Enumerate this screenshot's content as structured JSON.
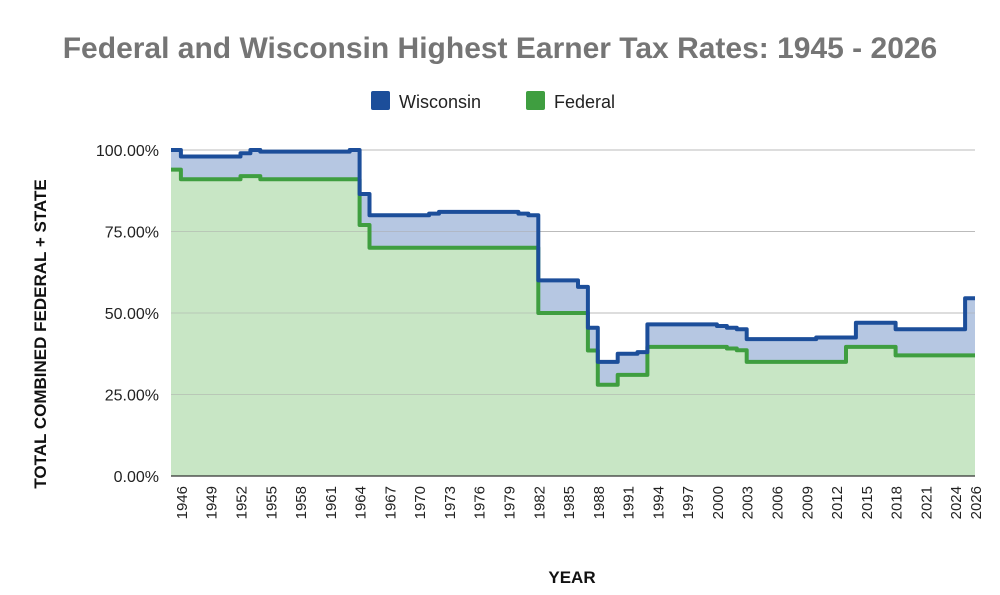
{
  "chart_data": {
    "type": "area",
    "title": "Federal and Wisconsin Highest Earner Tax Rates: 1945 - 2026",
    "xlabel": "YEAR",
    "ylabel": "TOTAL COMBINED FEDERAL + STATE",
    "ylim": [
      0,
      100
    ],
    "xlim": [
      1945,
      2026
    ],
    "grid": true,
    "legend_position": "top",
    "yticks": [
      "0.00%",
      "25.00%",
      "50.00%",
      "75.00%",
      "100.00%"
    ],
    "xticks": [
      "1946",
      "1949",
      "1952",
      "1955",
      "1958",
      "1961",
      "1964",
      "1967",
      "1970",
      "1973",
      "1976",
      "1979",
      "1982",
      "1985",
      "1988",
      "1991",
      "1994",
      "1997",
      "2000",
      "2003",
      "2006",
      "2009",
      "2012",
      "2015",
      "2018",
      "2021",
      "2024",
      "2026"
    ],
    "colors": {
      "wisconsin_line": "#1c4e9a",
      "wisconsin_fill": "#b6c7e2",
      "federal_line": "#3f9e40",
      "federal_fill": "#c8e6c5",
      "grid": "#cccccc",
      "title": "#757575"
    },
    "series": [
      {
        "name": "Wisconsin",
        "x": [
          1945,
          1946,
          1951,
          1952,
          1953,
          1954,
          1963,
          1964,
          1965,
          1970,
          1971,
          1972,
          1980,
          1981,
          1982,
          1986,
          1987,
          1988,
          1990,
          1992,
          1993,
          1999,
          2000,
          2001,
          2002,
          2003,
          2009,
          2010,
          2013,
          2014,
          2017,
          2018,
          2024,
          2025,
          2026
        ],
        "values": [
          100,
          98,
          98,
          99,
          100,
          99.5,
          100,
          86.5,
          80,
          80,
          80.5,
          81,
          80.5,
          80,
          60,
          58,
          45.5,
          35,
          37.5,
          38,
          46.5,
          46.5,
          46,
          45.5,
          45,
          42,
          42,
          42.5,
          42.5,
          47,
          47,
          45,
          45,
          54.5,
          54.5
        ]
      },
      {
        "name": "Federal",
        "x": [
          1945,
          1946,
          1951,
          1952,
          1953,
          1954,
          1963,
          1964,
          1965,
          1981,
          1982,
          1987,
          1988,
          1990,
          1992,
          1993,
          2000,
          2001,
          2002,
          2003,
          2012,
          2013,
          2017,
          2018,
          2026
        ],
        "values": [
          94,
          91,
          91,
          92,
          92,
          91,
          91,
          77,
          70,
          70,
          50,
          38.5,
          28,
          31,
          31,
          39.6,
          39.6,
          39.1,
          38.6,
          35,
          35,
          39.6,
          39.6,
          37,
          37
        ]
      }
    ]
  }
}
